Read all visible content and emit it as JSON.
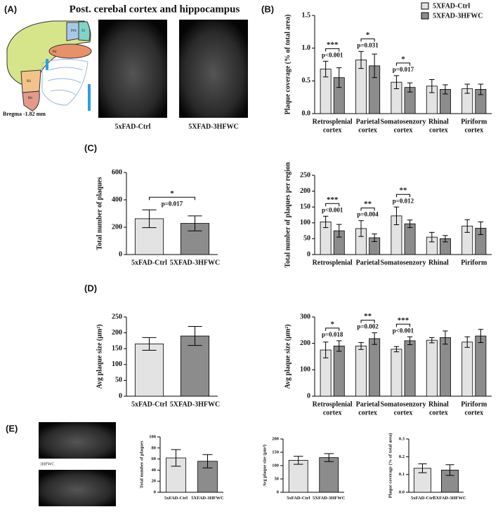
{
  "figure": {
    "panel_labels": [
      "(A)",
      "(B)",
      "(C)",
      "(D)",
      "(E)"
    ],
    "panel_a": {
      "title": "Post. cerebal cortex and hippocampus",
      "bregma": "Bregma -1.82 mm",
      "region_labels": [
        "PtA",
        "S1",
        "RS",
        "Rh",
        "Pir"
      ],
      "image_captions": [
        "5xFAD-Ctrl",
        "5XFAD-3HFWC"
      ]
    },
    "panel_e": {
      "image_label": "3HFWC"
    }
  },
  "chart_data": [
    {
      "type": "grouped-bar",
      "y_label": "Plaque coverage (% of total area)",
      "categories": [
        [
          "Retrosplenial",
          "cortex"
        ],
        [
          "Parietal",
          "cortex"
        ],
        [
          "Somatosenzory",
          "cortex"
        ],
        [
          "Rhinal",
          "cortex"
        ],
        [
          "Piriform",
          "cortex"
        ]
      ],
      "series": [
        {
          "name": "5XFAD-Ctrl",
          "color": "#e3e3e3",
          "values": [
            0.68,
            0.82,
            0.48,
            0.42,
            0.38
          ],
          "errors": [
            0.12,
            0.13,
            0.1,
            0.1,
            0.07
          ]
        },
        {
          "name": "5XFAD-3HFWC",
          "color": "#8c8c8c",
          "values": [
            0.55,
            0.73,
            0.4,
            0.37,
            0.37
          ],
          "errors": [
            0.15,
            0.18,
            0.07,
            0.07,
            0.08
          ]
        }
      ],
      "stars": [
        "***",
        "*",
        "*",
        null,
        null
      ],
      "p_values": [
        "p<0.001",
        "p=0.031",
        "p=0.017",
        null,
        null
      ],
      "ylim": [
        0,
        1.5
      ],
      "yticks": [
        {
          "value": 0,
          "label": "0.0"
        },
        {
          "value": 0.5,
          "label": "0.5"
        },
        {
          "value": 1,
          "label": "1.0"
        },
        {
          "value": 1.5,
          "label": "1.5"
        }
      ],
      "legend": true
    },
    {
      "type": "bar",
      "y_label": "Total number of plaques",
      "categories": [
        "5xFAD-Ctrl",
        "5XFAD-3HFWC"
      ],
      "values": [
        262,
        228
      ],
      "errors": [
        65,
        55
      ],
      "colors": [
        "#e3e3e3",
        "#8c8c8c"
      ],
      "stars": [
        "*"
      ],
      "p_values": [
        "p=0.017"
      ],
      "ylim": [
        0,
        600
      ],
      "yticks": [
        0,
        200,
        400,
        600
      ]
    },
    {
      "type": "grouped-bar",
      "y_label": "Total number of plaques per region",
      "categories": [
        "Retrosplenial",
        "Parietal",
        "Somatosenzory",
        "Rhinal",
        "Piriform"
      ],
      "series": [
        {
          "color": "#e3e3e3",
          "values": [
            103,
            82,
            122,
            55,
            90
          ],
          "errors": [
            18,
            25,
            28,
            15,
            20
          ]
        },
        {
          "color": "#8c8c8c",
          "values": [
            75,
            53,
            97,
            50,
            83
          ],
          "errors": [
            20,
            12,
            12,
            10,
            20
          ]
        }
      ],
      "stars": [
        "***",
        "**",
        "**",
        null,
        null
      ],
      "p_values": [
        "p<0.001",
        "p=0.004",
        "p=0.012",
        null,
        null
      ],
      "ylim": [
        0,
        250
      ],
      "yticks": [
        0,
        50,
        100,
        150,
        200,
        250
      ]
    },
    {
      "type": "bar",
      "y_label": "Avg plaque size (μm²)",
      "categories": [
        "5xFAD-Ctrl",
        "5XFAD-3HFWC"
      ],
      "values": [
        165,
        190
      ],
      "errors": [
        20,
        30
      ],
      "colors": [
        "#e3e3e3",
        "#8c8c8c"
      ],
      "ylim": [
        0,
        250
      ],
      "yticks": [
        0,
        50,
        100,
        150,
        200,
        250
      ]
    },
    {
      "type": "grouped-bar",
      "y_label": "Avg plaque size (μm²)",
      "categories": [
        [
          "Retrosplenial",
          "cortex"
        ],
        [
          "Parietal",
          "cortex"
        ],
        [
          "Somatosenzory",
          "cortex"
        ],
        [
          "Rhinal",
          "cortex"
        ],
        [
          "Piriform",
          "cortex"
        ]
      ],
      "series": [
        {
          "color": "#e3e3e3",
          "values": [
            175,
            190,
            178,
            212,
            205
          ],
          "errors": [
            30,
            13,
            10,
            10,
            20
          ]
        },
        {
          "color": "#8c8c8c",
          "values": [
            190,
            218,
            210,
            222,
            228
          ],
          "errors": [
            20,
            22,
            15,
            25,
            25
          ]
        }
      ],
      "stars": [
        "*",
        "**",
        "***",
        null,
        null
      ],
      "p_values": [
        "p=0.018",
        "p=0.002",
        "p<0.001",
        null,
        null
      ],
      "ylim": [
        0,
        300
      ],
      "yticks": [
        0,
        100,
        200,
        300
      ]
    },
    {
      "type": "bar",
      "y_label": "Total number of plaques",
      "categories": [
        "5xFAD-Ctrl",
        "5XFAD-3HFWC"
      ],
      "values": [
        62,
        56
      ],
      "errors": [
        15,
        12
      ],
      "colors": [
        "#e3e3e3",
        "#8c8c8c"
      ],
      "ylim": [
        0,
        100
      ],
      "yticks": [
        0,
        20,
        40,
        60,
        80,
        100
      ]
    },
    {
      "type": "bar",
      "y_label": "Avg plaque size (μm²)",
      "categories": [
        "5xFAD-Ctrl",
        "5XFAD-3HFWC"
      ],
      "values": [
        120,
        130
      ],
      "errors": [
        15,
        15
      ],
      "colors": [
        "#e3e3e3",
        "#8c8c8c"
      ],
      "ylim": [
        0,
        200
      ],
      "yticks": [
        0,
        50,
        100,
        150,
        200
      ]
    },
    {
      "type": "bar",
      "y_label": "Plaque coverage (% of total area)",
      "categories": [
        "5xFAD-Ctrl",
        "5XFAD-3HFWC"
      ],
      "values": [
        0.135,
        0.125
      ],
      "errors": [
        0.025,
        0.03
      ],
      "colors": [
        "#e3e3e3",
        "#8c8c8c"
      ],
      "ylim": [
        0,
        0.3
      ],
      "yticks": [
        {
          "value": 0,
          "label": "0.0"
        },
        {
          "value": 0.1,
          "label": "0.1"
        },
        {
          "value": 0.2,
          "label": "0.2"
        },
        {
          "value": 0.3,
          "label": "0.3"
        }
      ]
    }
  ]
}
